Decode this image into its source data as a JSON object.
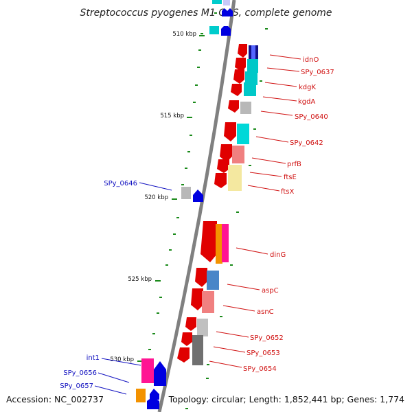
{
  "title": "Streptococcus pyogenes M1 GAS, complete genome",
  "footer": {
    "accession": "Accession: NC_002737",
    "topology": "Topology: circular; Length: 1,852,441 bp; Genes: 1,774"
  },
  "colors": {
    "backbone": "#808080",
    "tick": "#1a8a1a",
    "forward_gene": "#e00000",
    "reverse_gene": "#0000e0",
    "label_forward": "#d01010",
    "label_reverse": "#1010c0"
  },
  "kbp_labels": [
    "510 kbp",
    "515 kbp",
    "520 kbp",
    "525 kbp",
    "530 kbp"
  ],
  "right_labels": [
    "idnO",
    "SPy_0637",
    "kdgK",
    "kgdA",
    "SPy_0640",
    "SPy_0642",
    "prfB",
    "ftsE",
    "ftsX",
    "dinG",
    "aspC",
    "asnC",
    "SPy_0652",
    "SPy_0653",
    "SPy_0654"
  ],
  "left_labels": [
    "SPy_0646",
    "int1",
    "SPy_0656",
    "SPy_0657"
  ]
}
